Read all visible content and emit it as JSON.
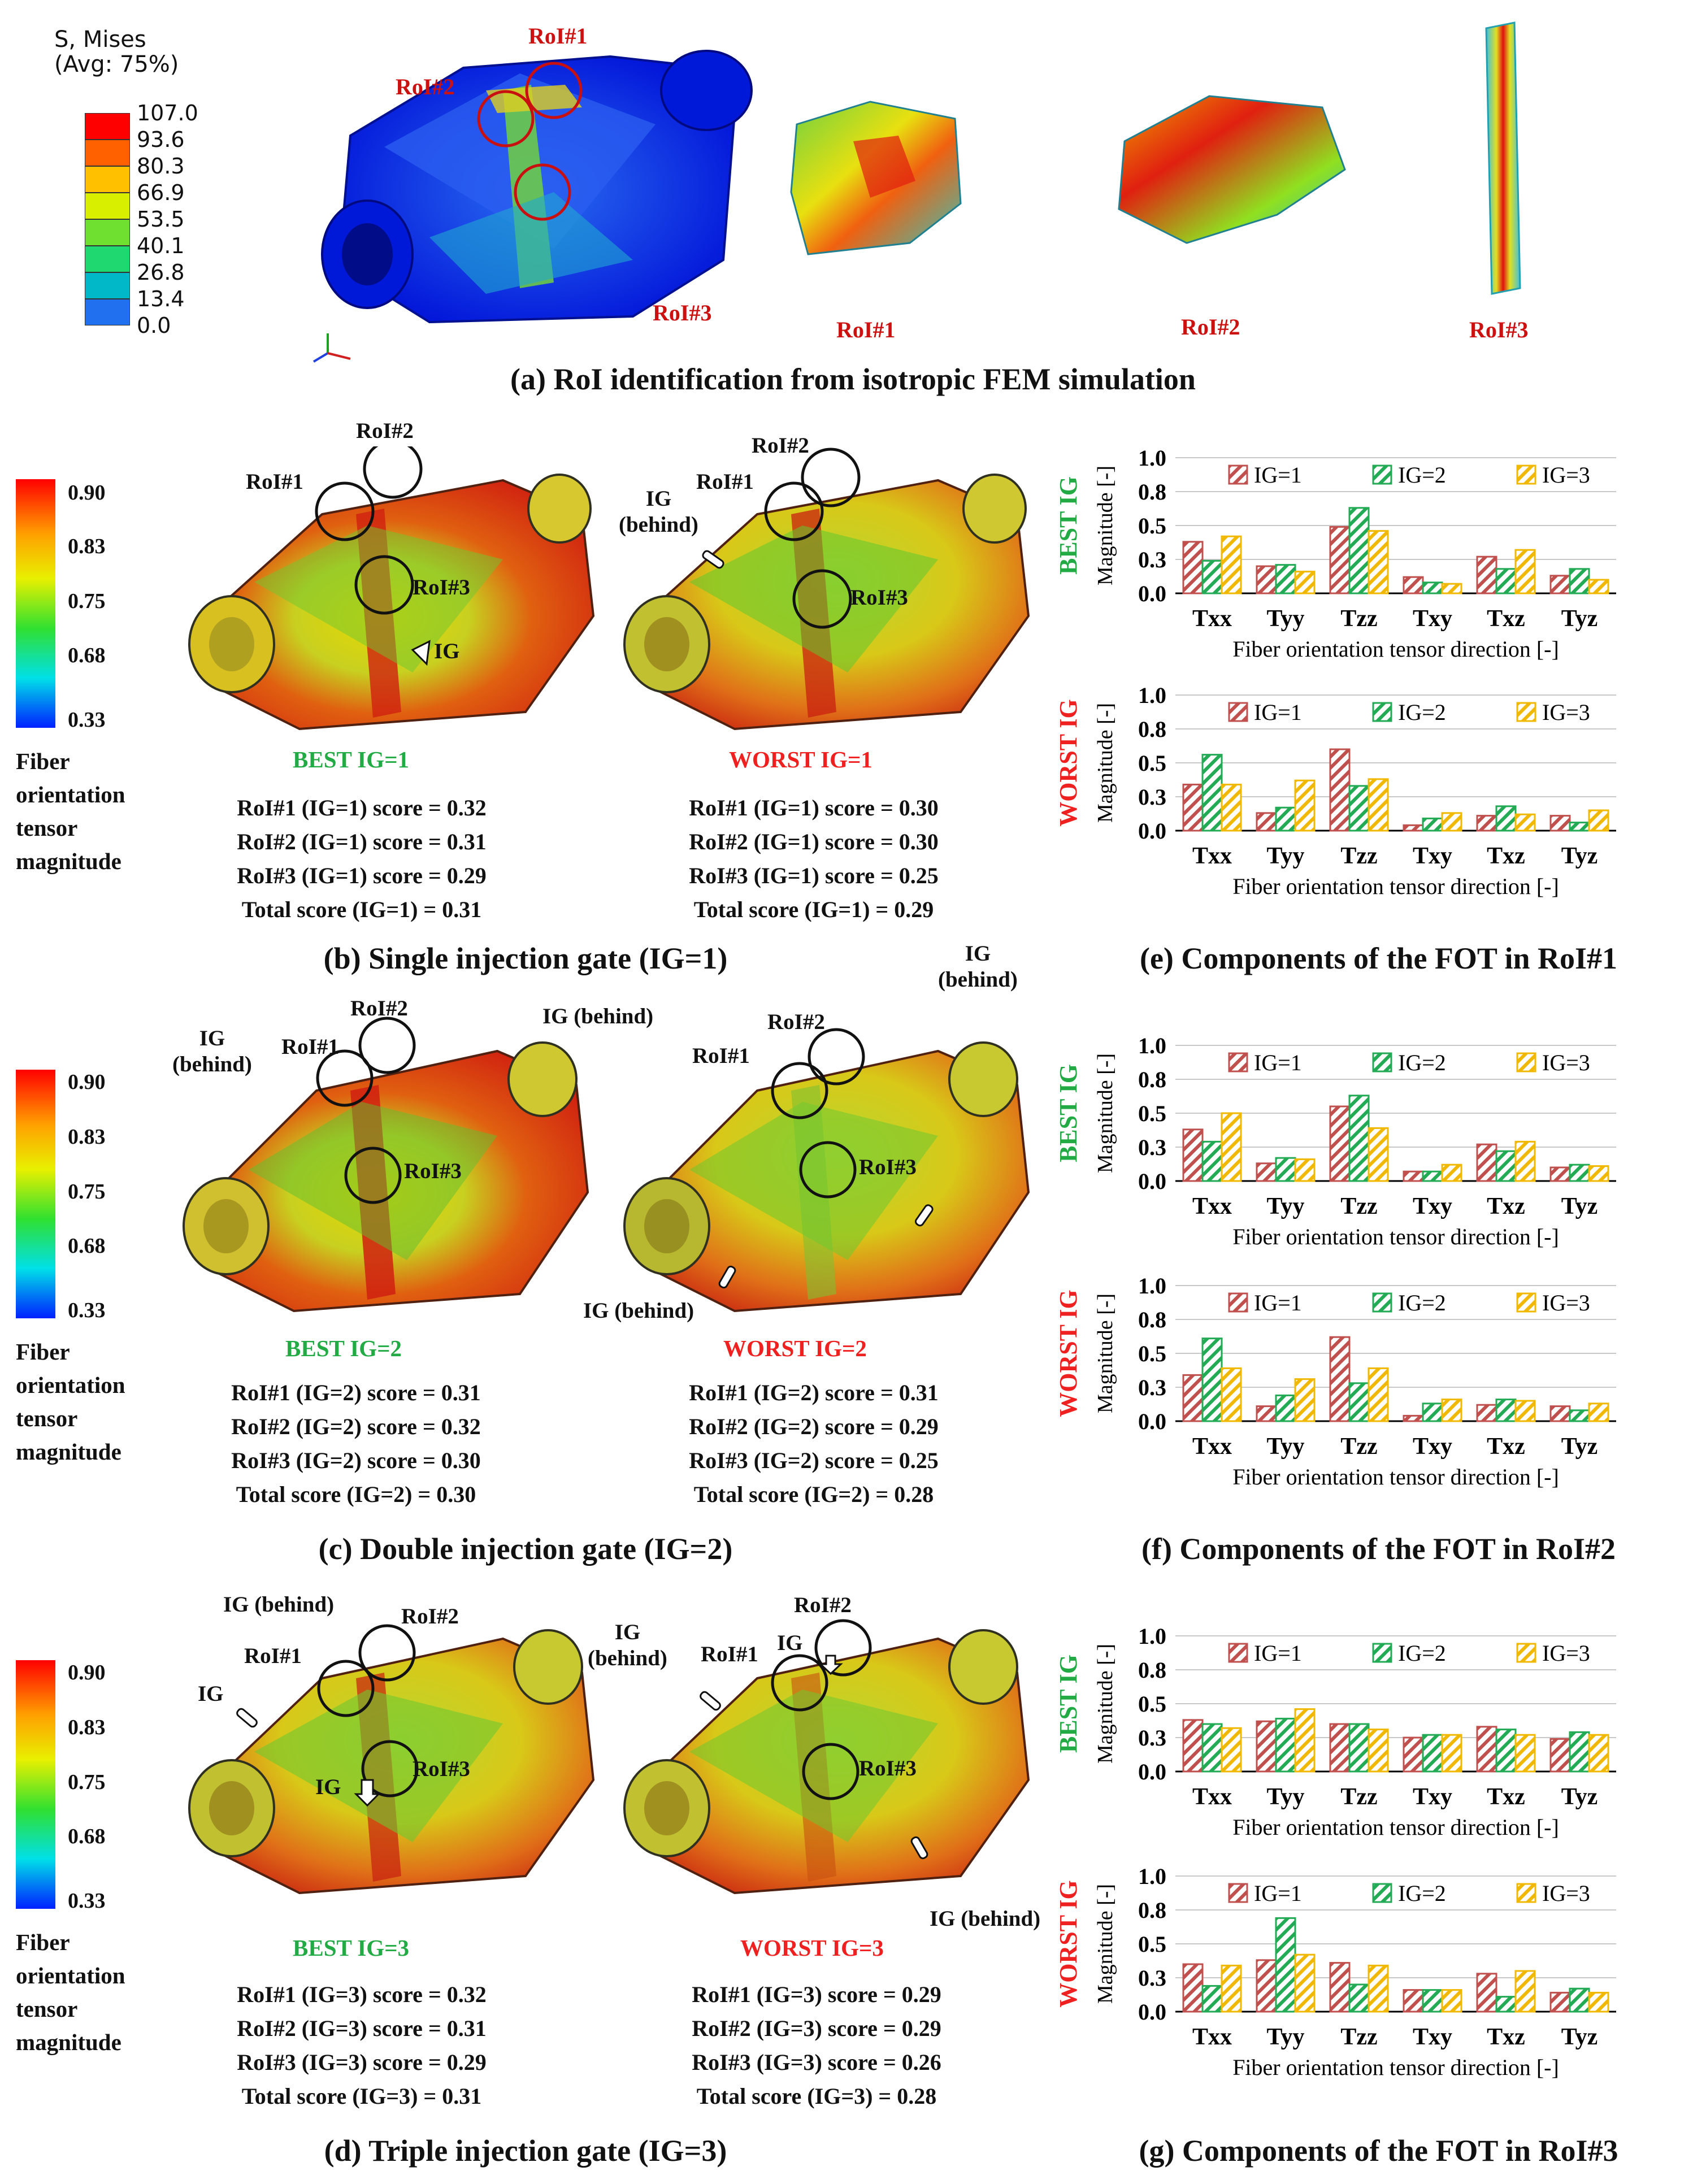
{
  "panel_a": {
    "legend_title_line1": "S, Mises",
    "legend_title_line2": "(Avg: 75%)",
    "legend_values": [
      "107.0",
      "93.6",
      "80.3",
      "66.9",
      "53.5",
      "40.1",
      "26.8",
      "13.4",
      "0.0"
    ],
    "legend_colors": [
      "#ff0000",
      "#ff6000",
      "#ffc000",
      "#d8f000",
      "#70e030",
      "#20d870",
      "#00b8c8",
      "#2070f0",
      "#0000ff"
    ],
    "roi_labels": {
      "roi1": "RoI#1",
      "roi2": "RoI#2",
      "roi3": "RoI#3"
    },
    "crop_labels": [
      "RoI#1",
      "RoI#2",
      "RoI#3"
    ],
    "caption": "(a) RoI identification from isotropic FEM simulation"
  },
  "colorbar": {
    "ticks": [
      "0.90",
      "0.83",
      "0.75",
      "0.68",
      "0.33"
    ],
    "title_lines": [
      "Fiber",
      "orientation",
      "tensor",
      "magnitude"
    ]
  },
  "panel_b": {
    "best_label": "BEST IG=1",
    "worst_label": "WORST IG=1",
    "best_ann": {
      "roi1": "RoI#1",
      "roi2": "RoI#2",
      "roi3": "RoI#3",
      "ig": "IG"
    },
    "worst_ann": {
      "roi1": "RoI#1",
      "roi2": "RoI#2",
      "roi3": "RoI#3",
      "ig": "IG\n(behind)"
    },
    "best_scores": [
      "RoI#1 (IG=1) score = 0.32",
      "RoI#2 (IG=1) score = 0.31",
      "RoI#3 (IG=1) score = 0.29",
      "Total score (IG=1) = 0.31"
    ],
    "worst_scores": [
      "RoI#1 (IG=1) score = 0.30",
      "RoI#2 (IG=1) score = 0.30",
      "RoI#3 (IG=1) score = 0.25",
      "Total score (IG=1) = 0.29"
    ],
    "caption": "(b) Single injection gate (IG=1)"
  },
  "panel_c": {
    "best_label": "BEST IG=2",
    "worst_label": "WORST IG=2",
    "best_ann": {
      "roi1": "RoI#1",
      "roi2": "RoI#2",
      "roi3": "RoI#3",
      "ig1": "IG\n(behind)",
      "ig2": "IG (behind)"
    },
    "worst_ann": {
      "roi1": "RoI#1",
      "roi2": "RoI#2",
      "roi3": "RoI#3",
      "ig1": "IG\n(behind)",
      "ig2": "IG (behind)"
    },
    "best_scores": [
      "RoI#1 (IG=2) score = 0.31",
      "RoI#2 (IG=2) score = 0.32",
      "RoI#3 (IG=2) score = 0.30",
      "Total score (IG=2) = 0.30"
    ],
    "worst_scores": [
      "RoI#1 (IG=2) score = 0.31",
      "RoI#2 (IG=2) score = 0.29",
      "RoI#3 (IG=2) score = 0.25",
      "Total score (IG=2) = 0.28"
    ],
    "caption": "(c) Double injection gate (IG=2)"
  },
  "panel_d": {
    "best_label": "BEST IG=3",
    "worst_label": "WORST IG=3",
    "best_ann": {
      "roi1": "RoI#1",
      "roi2": "RoI#2",
      "roi3": "RoI#3",
      "ig1": "IG (behind)",
      "ig2": "IG",
      "ig3": "IG"
    },
    "worst_ann": {
      "roi1": "RoI#1",
      "roi2": "RoI#2",
      "roi3": "RoI#3",
      "ig1": "IG\n(behind)",
      "ig2": "IG",
      "ig3": "IG (behind)"
    },
    "best_scores": [
      "RoI#1 (IG=3) score = 0.32",
      "RoI#2 (IG=3) score = 0.31",
      "RoI#3 (IG=3) score = 0.29",
      "Total score (IG=3) = 0.31"
    ],
    "worst_scores": [
      "RoI#1 (IG=3) score = 0.29",
      "RoI#2 (IG=3) score = 0.29",
      "RoI#3 (IG=3) score = 0.26",
      "Total score (IG=3) = 0.28"
    ],
    "caption": "(d) Triple injection gate (IG=3)"
  },
  "fot_captions": {
    "e": "(e) Components of the FOT in RoI#1",
    "f": "(f) Components of the FOT in RoI#2",
    "g": "(g) Components of the FOT in RoI#3"
  },
  "chart_data": [
    {
      "type": "bar",
      "panel": "e",
      "side_label": "BEST IG",
      "ylabel": "Magnitude [-]",
      "xlabel": "Fiber orientation tensor direction [-]",
      "ylim": [
        0,
        1.0
      ],
      "yticks": [
        "0.0",
        "0.3",
        "0.5",
        "0.8",
        "1.0"
      ],
      "categories": [
        "Txx",
        "Tyy",
        "Tzz",
        "Txy",
        "Txz",
        "Tyz"
      ],
      "series": [
        {
          "name": "IG=1",
          "values": [
            0.38,
            0.2,
            0.49,
            0.12,
            0.27,
            0.13
          ]
        },
        {
          "name": "IG=2",
          "values": [
            0.24,
            0.21,
            0.63,
            0.08,
            0.18,
            0.18
          ]
        },
        {
          "name": "IG=3",
          "values": [
            0.42,
            0.16,
            0.46,
            0.07,
            0.32,
            0.1
          ]
        }
      ]
    },
    {
      "type": "bar",
      "panel": "e",
      "side_label": "WORST IG",
      "ylabel": "Magnitude [-]",
      "xlabel": "Fiber orientation tensor direction [-]",
      "ylim": [
        0,
        1.0
      ],
      "yticks": [
        "0.0",
        "0.3",
        "0.5",
        "0.8",
        "1.0"
      ],
      "categories": [
        "Txx",
        "Tyy",
        "Tzz",
        "Txy",
        "Txz",
        "Tyz"
      ],
      "series": [
        {
          "name": "IG=1",
          "values": [
            0.34,
            0.13,
            0.6,
            0.04,
            0.11,
            0.11
          ]
        },
        {
          "name": "IG=2",
          "values": [
            0.56,
            0.17,
            0.33,
            0.09,
            0.18,
            0.06
          ]
        },
        {
          "name": "IG=3",
          "values": [
            0.34,
            0.37,
            0.38,
            0.13,
            0.12,
            0.15
          ]
        }
      ]
    },
    {
      "type": "bar",
      "panel": "f",
      "side_label": "BEST IG",
      "ylabel": "Magnitude [-]",
      "xlabel": "Fiber orientation tensor direction [-]",
      "ylim": [
        0,
        1.0
      ],
      "yticks": [
        "0.0",
        "0.3",
        "0.5",
        "0.8",
        "1.0"
      ],
      "categories": [
        "Txx",
        "Tyy",
        "Tzz",
        "Txy",
        "Txz",
        "Tyz"
      ],
      "series": [
        {
          "name": "IG=1",
          "values": [
            0.38,
            0.13,
            0.55,
            0.07,
            0.27,
            0.1
          ]
        },
        {
          "name": "IG=2",
          "values": [
            0.29,
            0.17,
            0.63,
            0.07,
            0.22,
            0.12
          ]
        },
        {
          "name": "IG=3",
          "values": [
            0.5,
            0.16,
            0.39,
            0.12,
            0.29,
            0.11
          ]
        }
      ]
    },
    {
      "type": "bar",
      "panel": "f",
      "side_label": "WORST IG",
      "ylabel": "Magnitude [-]",
      "xlabel": "Fiber orientation tensor direction [-]",
      "ylim": [
        0,
        1.0
      ],
      "yticks": [
        "0.0",
        "0.3",
        "0.5",
        "0.8",
        "1.0"
      ],
      "categories": [
        "Txx",
        "Tyy",
        "Tzz",
        "Txy",
        "Txz",
        "Tyz"
      ],
      "series": [
        {
          "name": "IG=1",
          "values": [
            0.34,
            0.11,
            0.62,
            0.04,
            0.12,
            0.11
          ]
        },
        {
          "name": "IG=2",
          "values": [
            0.61,
            0.19,
            0.28,
            0.13,
            0.16,
            0.08
          ]
        },
        {
          "name": "IG=3",
          "values": [
            0.39,
            0.31,
            0.39,
            0.16,
            0.15,
            0.13
          ]
        }
      ]
    },
    {
      "type": "bar",
      "panel": "g",
      "side_label": "BEST IG",
      "ylabel": "Magnitude [-]",
      "xlabel": "Fiber orientation tensor direction [-]",
      "ylim": [
        0,
        1.0
      ],
      "yticks": [
        "0.0",
        "0.3",
        "0.5",
        "0.8",
        "1.0"
      ],
      "categories": [
        "Txx",
        "Tyy",
        "Tzz",
        "Txy",
        "Txz",
        "Tyz"
      ],
      "series": [
        {
          "name": "IG=1",
          "values": [
            0.38,
            0.37,
            0.35,
            0.25,
            0.33,
            0.24
          ]
        },
        {
          "name": "IG=2",
          "values": [
            0.35,
            0.39,
            0.35,
            0.27,
            0.31,
            0.29
          ]
        },
        {
          "name": "IG=3",
          "values": [
            0.32,
            0.46,
            0.31,
            0.27,
            0.27,
            0.27
          ]
        }
      ]
    },
    {
      "type": "bar",
      "panel": "g",
      "side_label": "WORST IG",
      "ylabel": "Magnitude [-]",
      "xlabel": "Fiber orientation tensor direction [-]",
      "ylim": [
        0,
        1.0
      ],
      "yticks": [
        "0.0",
        "0.3",
        "0.5",
        "0.8",
        "1.0"
      ],
      "categories": [
        "Txx",
        "Tyy",
        "Tzz",
        "Txy",
        "Txz",
        "Tyz"
      ],
      "series": [
        {
          "name": "IG=1",
          "values": [
            0.35,
            0.38,
            0.36,
            0.16,
            0.28,
            0.14
          ]
        },
        {
          "name": "IG=2",
          "values": [
            0.19,
            0.69,
            0.2,
            0.16,
            0.11,
            0.17
          ]
        },
        {
          "name": "IG=3",
          "values": [
            0.34,
            0.42,
            0.34,
            0.16,
            0.3,
            0.14
          ]
        }
      ]
    }
  ],
  "series_colors": {
    "IG=1": "#c0504d",
    "IG=2": "#22aa55",
    "IG=3": "#f0b800"
  },
  "side_label_colors": {
    "BEST IG": "#22aa44",
    "WORST IG": "#ee2020"
  }
}
